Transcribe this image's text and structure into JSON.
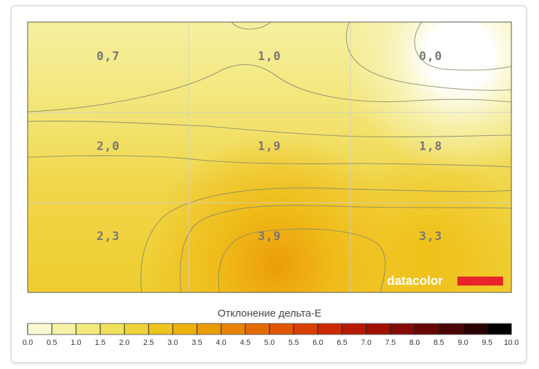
{
  "chart_data": {
    "type": "heatmap",
    "rows": 3,
    "cols": 3,
    "values": [
      [
        "0,7",
        "1,0",
        "0,0"
      ],
      [
        "2,0",
        "1,9",
        "1,8"
      ],
      [
        "2,3",
        "3,9",
        "3,3"
      ]
    ],
    "legend": {
      "title": "Отклонение дельта-E",
      "ticks": [
        "0.0",
        "0.5",
        "1.0",
        "1.5",
        "2.0",
        "2.5",
        "3.0",
        "3.5",
        "4.0",
        "4.5",
        "5.0",
        "5.5",
        "6.0",
        "6.5",
        "7.0",
        "7.5",
        "8.0",
        "8.5",
        "9.0",
        "9.5",
        "10.0"
      ],
      "colors": [
        "#ffffff",
        "#fafad4",
        "#f7f2a6",
        "#f3ea7e",
        "#f0e05a",
        "#eed13a",
        "#edc31d",
        "#ecb10d",
        "#ea9c05",
        "#e88304",
        "#e46a03",
        "#e05502",
        "#d83f02",
        "#cc2a02",
        "#b71a02",
        "#9f1002",
        "#840a04",
        "#680604",
        "#4a0404",
        "#2a0202",
        "#000000"
      ]
    },
    "brand": {
      "text": "datacolor",
      "color": "#e8242a"
    }
  }
}
